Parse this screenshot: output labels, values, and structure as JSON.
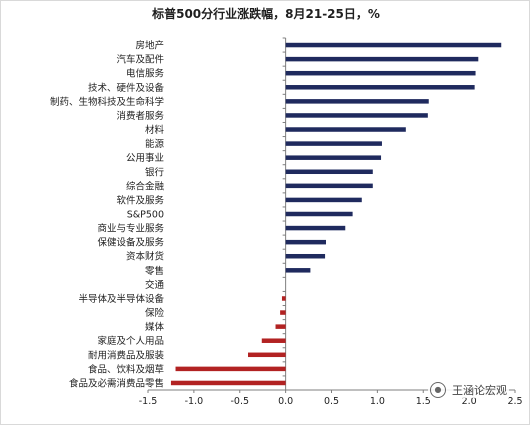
{
  "chart_data": {
    "type": "bar",
    "orientation": "horizontal",
    "title": "标普500分行业涨跌幅，8月21-25日，%",
    "categories": [
      "房地产",
      "汽车及配件",
      "电信服务",
      "技术、硬件及设备",
      "制药、生物科技及生命科学",
      "消费者服务",
      "材料",
      "能源",
      "公用事业",
      "银行",
      "综合金融",
      "软件及服务",
      "S&P500",
      "商业与专业服务",
      "保健设备及服务",
      "资本财货",
      "零售",
      "交通",
      "半导体及半导体设备",
      "保险",
      "媒体",
      "家庭及个人用品",
      "耐用消费品及服装",
      "食品、饮料及烟草",
      "食品及必需消费品零售"
    ],
    "values": [
      2.35,
      2.1,
      2.07,
      2.06,
      1.56,
      1.55,
      1.31,
      1.05,
      1.04,
      0.95,
      0.95,
      0.83,
      0.73,
      0.65,
      0.44,
      0.43,
      0.27,
      0.0,
      -0.04,
      -0.06,
      -0.11,
      -0.26,
      -0.41,
      -1.2,
      -1.25
    ],
    "xlim": [
      -1.5,
      2.5
    ],
    "xticks": [
      "-1.5",
      "-1.0",
      "-0.5",
      "0.0",
      "0.5",
      "1.0",
      "1.5",
      "2.0",
      "2.5"
    ],
    "colors": {
      "positive": "#1f2a5e",
      "negative": "#b22222",
      "axis": "#7f7f7f"
    },
    "grid": false,
    "legend": "none"
  },
  "watermark": {
    "text": "王涵论宏观",
    "icon": "wechat-icon"
  }
}
